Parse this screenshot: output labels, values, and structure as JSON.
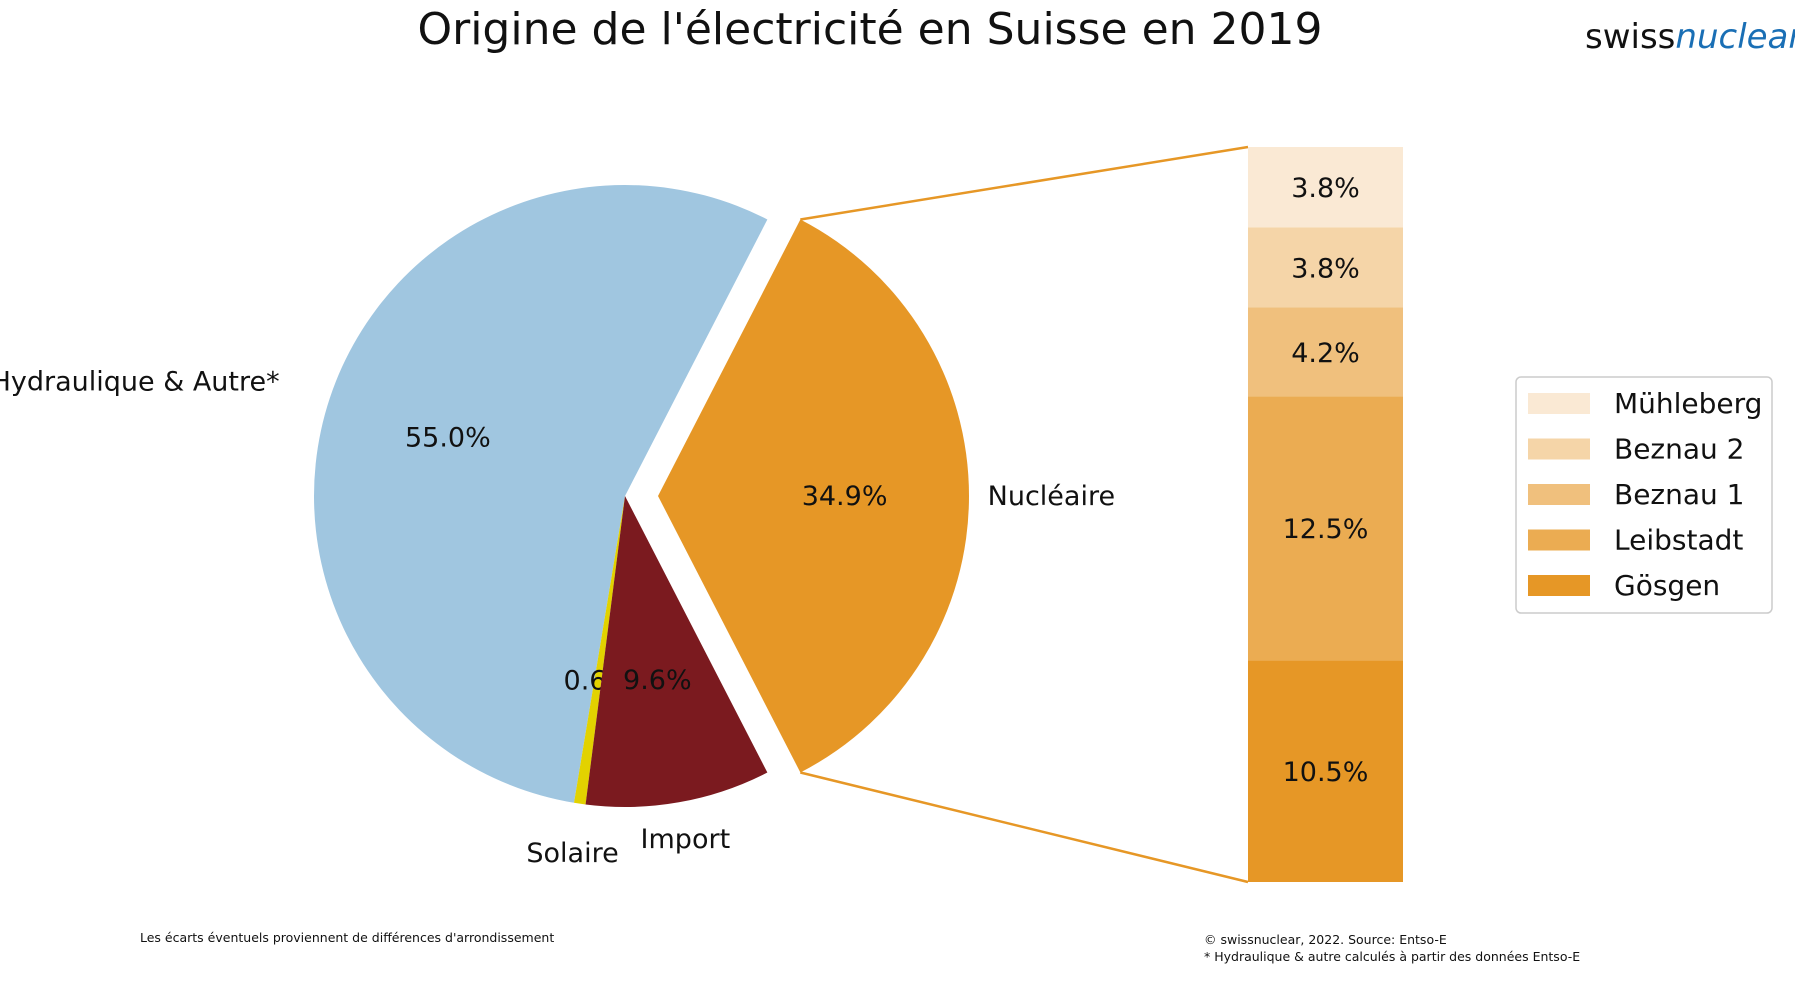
{
  "chart_data": {
    "type": "pie",
    "title": "Origine de l'électricité en Suisse en 2019",
    "pie": {
      "slices": [
        {
          "label": "Nucléaire",
          "value": 34.9,
          "pct_label": "34.9%",
          "color": "#e69726",
          "exploded": true
        },
        {
          "label": "Hydraulique & Autre*",
          "value": 55.0,
          "pct_label": "55.0%",
          "color": "#a0c6e0",
          "exploded": false
        },
        {
          "label": "Solaire",
          "value": 0.6,
          "pct_label": "0.6%",
          "color": "#e2d200",
          "exploded": false
        },
        {
          "label": "Import",
          "value": 9.6,
          "pct_label": "9.6%",
          "color": "#7b1a1f",
          "exploded": false
        }
      ]
    },
    "breakdown": {
      "type": "stacked-bar",
      "parent": "Nucléaire",
      "segments": [
        {
          "name": "Gösgen",
          "value": 10.5,
          "label": "10.5%",
          "color": "#e69726"
        },
        {
          "name": "Leibstadt",
          "value": 12.5,
          "label": "12.5%",
          "color": "#ebac52"
        },
        {
          "name": "Beznau 1",
          "value": 4.2,
          "label": "4.2%",
          "color": "#f0c07d"
        },
        {
          "name": "Beznau 2",
          "value": 3.8,
          "label": "3.8%",
          "color": "#f5d5a8"
        },
        {
          "name": "Mühleberg",
          "value": 3.8,
          "label": "3.8%",
          "color": "#fae9d4"
        }
      ],
      "connector_color": "#e69726"
    },
    "legend": {
      "position": "right",
      "entries": [
        "Mühleberg",
        "Beznau 2",
        "Beznau 1",
        "Leibstadt",
        "Gösgen"
      ]
    }
  },
  "logo": {
    "part1": "swiss",
    "part2": "nuclear"
  },
  "footer": {
    "left_note": "Les écarts éventuels proviennent de différences d'arrondissement",
    "source": "© swissnuclear, 2022. Source: Entso-E",
    "footnote": "* Hydraulique & autre calculés à partir des données Entso-E"
  }
}
